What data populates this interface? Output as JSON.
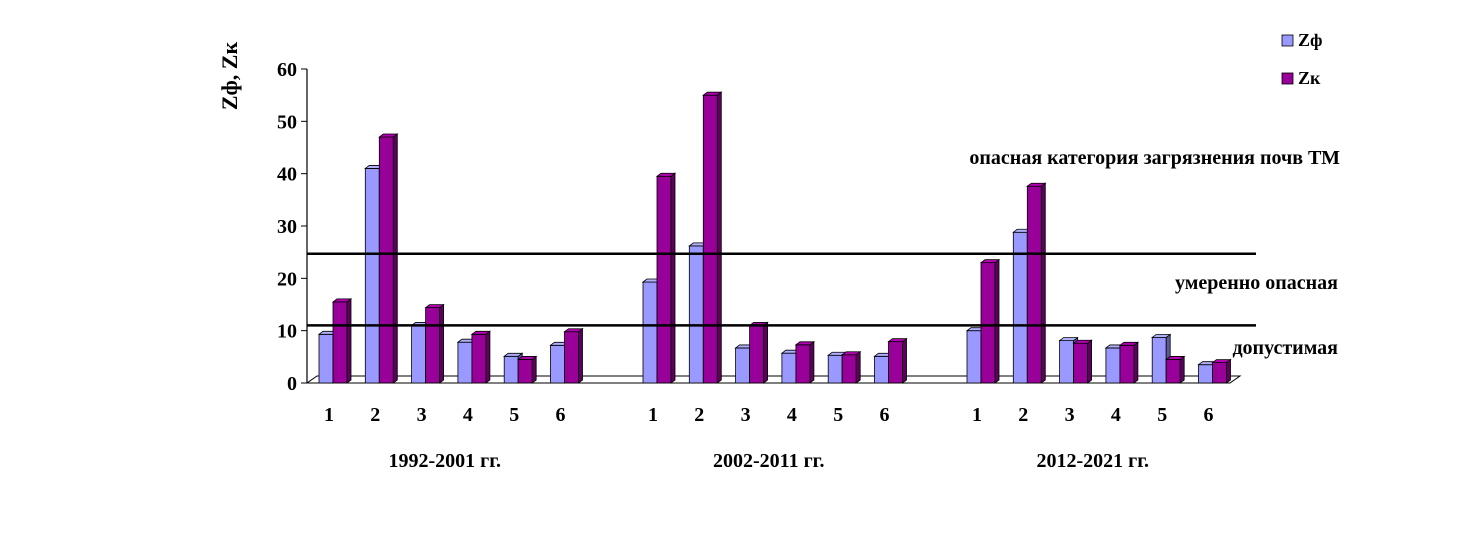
{
  "chart_data": {
    "type": "bar",
    "ylabel": "Zф, Zк",
    "ylim": [
      0,
      60
    ],
    "yticks": [
      0,
      10,
      20,
      30,
      40,
      50,
      60
    ],
    "grid": false,
    "legend_position": "top-right",
    "colors": {
      "zf": "#9999ff",
      "zk": "#990099"
    },
    "groups": [
      {
        "label": "1992-2001 гг.",
        "categories": [
          "1",
          "2",
          "3",
          "4",
          "5",
          "6"
        ]
      },
      {
        "label": "2002-2011 гг.",
        "categories": [
          "1",
          "2",
          "3",
          "4",
          "5",
          "6"
        ]
      },
      {
        "label": "2012-2021 гг.",
        "categories": [
          "1",
          "2",
          "3",
          "4",
          "5",
          "6"
        ]
      }
    ],
    "series": [
      {
        "name": "Zф",
        "values": [
          9.3,
          41,
          11,
          7.8,
          5.1,
          7.2,
          19.3,
          26.2,
          6.7,
          5.7,
          5.3,
          5.1,
          10,
          28.8,
          8.1,
          6.7,
          8.7,
          3.5
        ]
      },
      {
        "name": "Zк",
        "values": [
          15.5,
          47,
          14.4,
          9.3,
          4.5,
          9.8,
          39.5,
          55,
          11,
          7.3,
          5.4,
          7.9,
          23,
          37.6,
          7.6,
          7.2,
          4.5,
          3.9
        ]
      }
    ],
    "thresholds": [
      {
        "value": 24.7
      },
      {
        "value": 11
      }
    ],
    "annotations": [
      {
        "text": "опасная категория загрязнения почв ТМ"
      },
      {
        "text": "умеренно опасная"
      },
      {
        "text": "допустимая"
      }
    ]
  }
}
